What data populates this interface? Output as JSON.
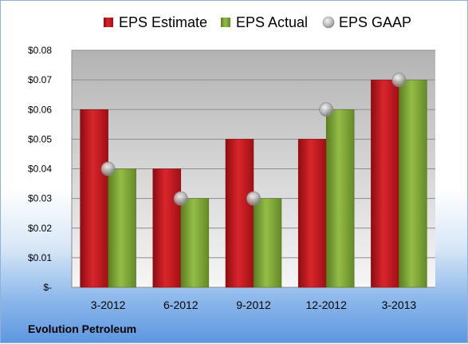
{
  "chart_data": {
    "type": "bar",
    "categories": [
      "3-2012",
      "6-2012",
      "9-2012",
      "12-2012",
      "3-2013"
    ],
    "series": [
      {
        "name": "EPS Estimate",
        "type": "bar",
        "color": "#c0161c",
        "values": [
          0.06,
          0.04,
          0.05,
          0.05,
          0.07
        ]
      },
      {
        "name": "EPS Actual",
        "type": "bar",
        "color": "#7aa332",
        "values": [
          0.04,
          0.03,
          0.03,
          0.06,
          0.07
        ]
      },
      {
        "name": "EPS GAAP",
        "type": "scatter",
        "color": "#b8b8b8",
        "values": [
          0.04,
          0.03,
          0.03,
          0.06,
          0.07
        ]
      }
    ],
    "ylim": [
      0,
      0.08
    ],
    "yticks": [
      0,
      0.01,
      0.02,
      0.03,
      0.04,
      0.05,
      0.06,
      0.07,
      0.08
    ],
    "ytick_labels": [
      "$-",
      "$0.01",
      "$0.02",
      "$0.03",
      "$0.04",
      "$0.05",
      "$0.06",
      "$0.07",
      "$0.08"
    ],
    "grid": true,
    "legend_position": "top"
  },
  "footer": {
    "company": "Evolution Petroleum"
  }
}
